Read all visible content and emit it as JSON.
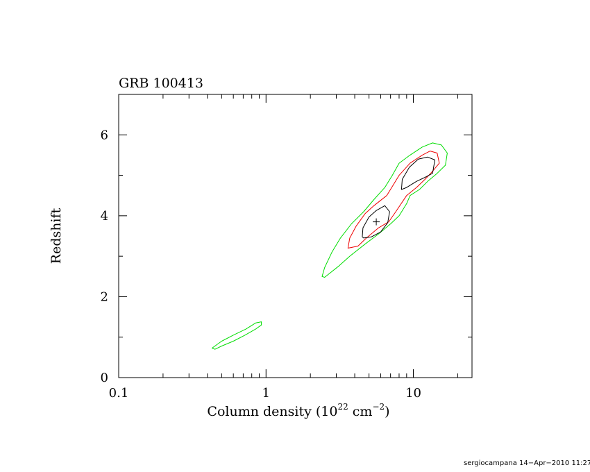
{
  "chart_data": {
    "type": "contour",
    "title": "GRB 100413",
    "xlabel": {
      "prefix": "Column density (10",
      "exp1": "22",
      "mid": " cm",
      "exp2": "−2",
      "suffix": ")"
    },
    "ylabel": "Redshift",
    "xscale": "log",
    "xlim": [
      0.1,
      25
    ],
    "ylim": [
      0,
      7
    ],
    "xticks": [
      {
        "value": 0.1,
        "label": "0.1"
      },
      {
        "value": 1,
        "label": "1"
      },
      {
        "value": 10,
        "label": "10"
      }
    ],
    "yticks": [
      {
        "value": 0,
        "label": "0"
      },
      {
        "value": 2,
        "label": "2"
      },
      {
        "value": 4,
        "label": "4"
      },
      {
        "value": 6,
        "label": "6"
      }
    ],
    "best_fit": {
      "x": 5.6,
      "y": 3.85
    },
    "contours": [
      {
        "color": "#00dd00",
        "points": [
          [
            2.4,
            2.5
          ],
          [
            2.5,
            2.72
          ],
          [
            2.8,
            3.1
          ],
          [
            3.2,
            3.45
          ],
          [
            3.8,
            3.8
          ],
          [
            4.6,
            4.1
          ],
          [
            5.4,
            4.4
          ],
          [
            6.4,
            4.7
          ],
          [
            7.2,
            5.0
          ],
          [
            8.0,
            5.3
          ],
          [
            9.5,
            5.5
          ],
          [
            11.5,
            5.7
          ],
          [
            13.5,
            5.8
          ],
          [
            15.5,
            5.75
          ],
          [
            17.0,
            5.55
          ],
          [
            16.5,
            5.25
          ],
          [
            14.5,
            5.05
          ],
          [
            12.5,
            4.85
          ],
          [
            11.0,
            4.65
          ],
          [
            9.5,
            4.5
          ],
          [
            9.0,
            4.3
          ],
          [
            8.0,
            4.0
          ],
          [
            7.0,
            3.8
          ],
          [
            5.8,
            3.55
          ],
          [
            4.7,
            3.3
          ],
          [
            3.7,
            3.0
          ],
          [
            3.1,
            2.75
          ],
          [
            2.5,
            2.48
          ],
          [
            2.4,
            2.5
          ]
        ]
      },
      {
        "color": "#00dd00",
        "points": [
          [
            0.43,
            0.73
          ],
          [
            0.5,
            0.9
          ],
          [
            0.6,
            1.05
          ],
          [
            0.73,
            1.2
          ],
          [
            0.85,
            1.35
          ],
          [
            0.93,
            1.38
          ],
          [
            0.93,
            1.3
          ],
          [
            0.85,
            1.2
          ],
          [
            0.72,
            1.05
          ],
          [
            0.6,
            0.9
          ],
          [
            0.5,
            0.78
          ],
          [
            0.45,
            0.7
          ],
          [
            0.43,
            0.73
          ]
        ]
      },
      {
        "color": "#ee0000",
        "points": [
          [
            3.6,
            3.2
          ],
          [
            3.7,
            3.45
          ],
          [
            4.1,
            3.75
          ],
          [
            4.7,
            4.05
          ],
          [
            5.4,
            4.25
          ],
          [
            6.6,
            4.5
          ],
          [
            8.0,
            5.0
          ],
          [
            9.5,
            5.3
          ],
          [
            11.5,
            5.5
          ],
          [
            13.0,
            5.6
          ],
          [
            14.5,
            5.55
          ],
          [
            15.0,
            5.3
          ],
          [
            13.5,
            5.1
          ],
          [
            12.0,
            4.9
          ],
          [
            10.5,
            4.7
          ],
          [
            9.0,
            4.5
          ],
          [
            7.6,
            4.1
          ],
          [
            6.8,
            3.85
          ],
          [
            5.8,
            3.7
          ],
          [
            4.8,
            3.45
          ],
          [
            4.2,
            3.25
          ],
          [
            3.6,
            3.2
          ]
        ]
      },
      {
        "color": "#000000",
        "points": [
          [
            4.5,
            3.48
          ],
          [
            4.55,
            3.7
          ],
          [
            5.0,
            3.97
          ],
          [
            5.6,
            4.13
          ],
          [
            6.4,
            4.25
          ],
          [
            6.9,
            4.1
          ],
          [
            6.7,
            3.83
          ],
          [
            6.0,
            3.6
          ],
          [
            5.2,
            3.48
          ],
          [
            4.6,
            3.45
          ],
          [
            4.5,
            3.48
          ]
        ]
      },
      {
        "color": "#000000",
        "points": [
          [
            8.3,
            4.65
          ],
          [
            8.4,
            4.9
          ],
          [
            9.4,
            5.2
          ],
          [
            10.8,
            5.4
          ],
          [
            12.5,
            5.45
          ],
          [
            14.0,
            5.38
          ],
          [
            13.5,
            5.05
          ],
          [
            12.0,
            4.95
          ],
          [
            10.5,
            4.85
          ],
          [
            9.0,
            4.7
          ],
          [
            8.3,
            4.65
          ]
        ]
      }
    ]
  },
  "footer": "sergiocampana 14−Apr−2010 11:27"
}
